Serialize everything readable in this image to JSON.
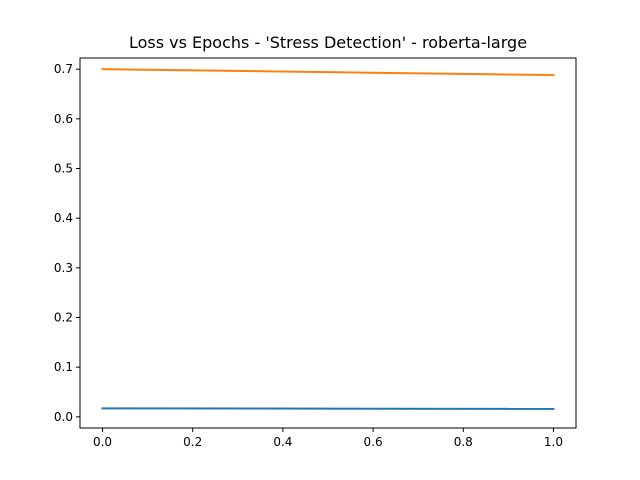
{
  "chart_data": {
    "type": "line",
    "title": "Loss vs Epochs - 'Stress Detection' - roberta-large",
    "xlabel": "",
    "ylabel": "",
    "xlim": [
      -0.05,
      1.05
    ],
    "ylim": [
      -0.0225,
      0.7225
    ],
    "x_ticks": [
      0.0,
      0.2,
      0.4,
      0.6,
      0.8,
      1.0
    ],
    "x_tick_labels": [
      "0.0",
      "0.2",
      "0.4",
      "0.6",
      "0.8",
      "1.0"
    ],
    "y_ticks": [
      0.0,
      0.1,
      0.2,
      0.3,
      0.4,
      0.5,
      0.6,
      0.7
    ],
    "y_tick_labels": [
      "0.0",
      "0.1",
      "0.2",
      "0.3",
      "0.4",
      "0.5",
      "0.6",
      "0.7"
    ],
    "grid": false,
    "legend": "none",
    "series": [
      {
        "color": "#1f77b4",
        "x": [
          0,
          1
        ],
        "y": [
          0.017,
          0.016
        ]
      },
      {
        "color": "#ff7f0e",
        "x": [
          0,
          1
        ],
        "y": [
          0.7,
          0.688
        ]
      }
    ]
  }
}
